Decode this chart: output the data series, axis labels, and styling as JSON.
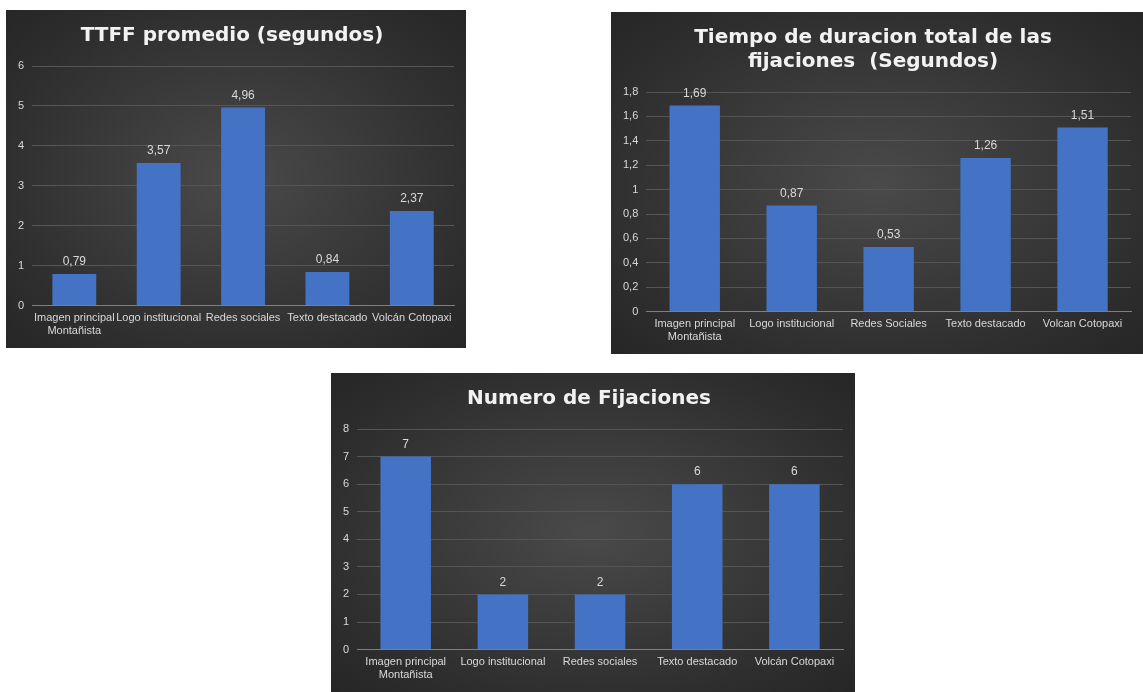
{
  "chart_data": [
    {
      "type": "bar",
      "title": "TTFF promedio (segundos)",
      "categories": [
        "Imagen principal Montañista",
        "Logo institucional",
        "Redes sociales",
        "Texto destacado",
        "Volcán Cotopaxi"
      ],
      "values": [
        0.79,
        3.57,
        4.96,
        0.84,
        2.37
      ],
      "value_labels": [
        "0,79",
        "3,57",
        "4,96",
        "0,84",
        "2,37"
      ],
      "color": "#4472c4",
      "ylim": [
        0,
        6
      ],
      "yticks": [
        0,
        1,
        2,
        3,
        4,
        5,
        6
      ],
      "grid": "y",
      "legend": false
    },
    {
      "type": "bar",
      "title": "Tiempo de duracion total de las fijaciones  (Segundos)",
      "categories": [
        "Imagen principal Montañista",
        "Logo institucional",
        "Redes Sociales",
        "Texto destacado",
        "Volcan Cotopaxi"
      ],
      "values": [
        1.69,
        0.87,
        0.53,
        1.26,
        1.51
      ],
      "value_labels": [
        "1,69",
        "0,87",
        "0,53",
        "1,26",
        "1,51"
      ],
      "color": "#4472c4",
      "ylim": [
        0,
        1.8
      ],
      "yticks": [
        0,
        {
          "value": 0.2,
          "label": "0,2"
        },
        {
          "value": 0.4,
          "label": "0,4"
        },
        {
          "value": 0.6,
          "label": "0,6"
        },
        {
          "value": 0.8,
          "label": "0,8"
        },
        1,
        {
          "value": 1.2,
          "label": "1,2"
        },
        {
          "value": 1.4,
          "label": "1,4"
        },
        {
          "value": 1.6,
          "label": "1,6"
        },
        {
          "value": 1.8,
          "label": "1,8"
        }
      ],
      "grid": "y",
      "legend": false
    },
    {
      "type": "bar",
      "title": "Numero de Fijaciones",
      "categories": [
        "Imagen principal Montañista",
        "Logo institucional",
        "Redes sociales",
        "Texto destacado",
        "Volcán Cotopaxi"
      ],
      "values": [
        7,
        2,
        2,
        6,
        6
      ],
      "data_labels": true,
      "color": "#4472c4",
      "ylim": [
        0,
        8
      ],
      "yticks": [
        0,
        1,
        2,
        3,
        4,
        5,
        6,
        7,
        8
      ],
      "grid": "y",
      "legend": false
    }
  ]
}
